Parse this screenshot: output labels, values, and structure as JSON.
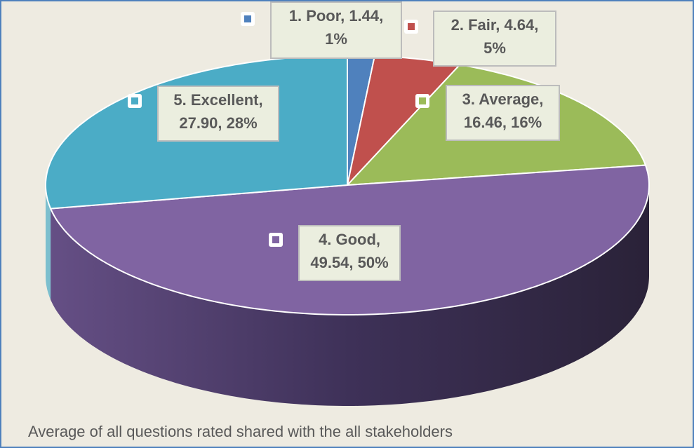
{
  "chart_data": {
    "type": "pie",
    "style": "3d",
    "title": "Average of all questions rated shared with the all stakeholders",
    "slices": [
      {
        "label": "1.   Poor, 1.44, 1%",
        "name": "Poor",
        "value": 1.44,
        "percent": "1%",
        "color": "#4f81bd"
      },
      {
        "label": "2.   Fair, 4.64, 5%",
        "name": "Fair",
        "value": 4.64,
        "percent": "5%",
        "color": "#c0504d"
      },
      {
        "label": "3.   Average, 16.46, 16%",
        "name": "Average",
        "value": 16.46,
        "percent": "16%",
        "color": "#9bbb59"
      },
      {
        "label": "4.   Good, 49.54, 50%",
        "name": "Good",
        "value": 49.54,
        "percent": "50%",
        "color": "#8064a2"
      },
      {
        "label": "5.   Excellent, 27.90, 28%",
        "name": "Excellent",
        "value": 27.9,
        "percent": "28%",
        "color": "#4bacc6"
      }
    ]
  }
}
